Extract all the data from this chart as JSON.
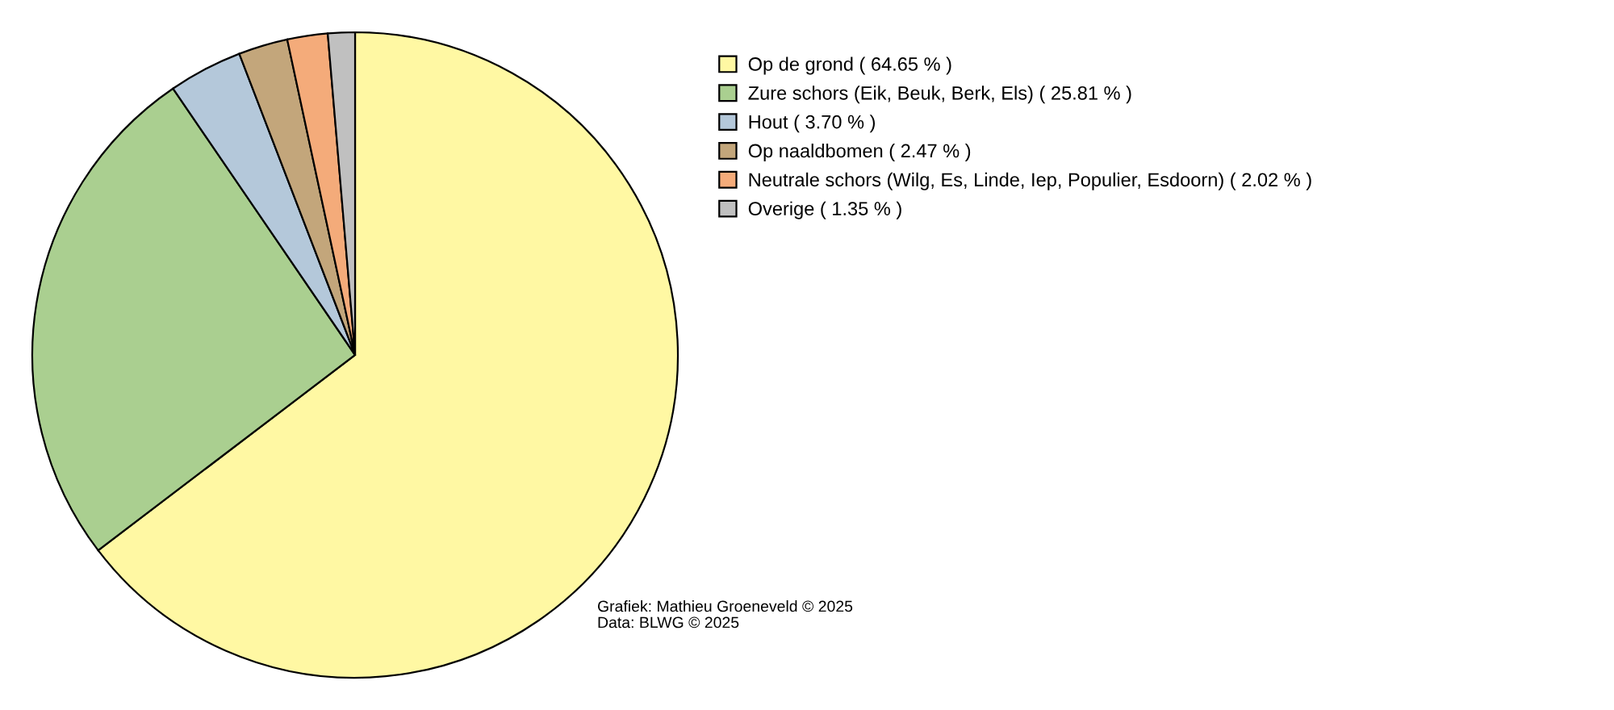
{
  "chart_data": {
    "type": "pie",
    "categories": [
      "Op de grond",
      "Zure schors (Eik, Beuk, Berk, Els)",
      "Hout",
      "Op naaldbomen",
      "Neutrale schors (Wilg, Es, Linde, Iep, Populier, Esdoorn)",
      "Overige"
    ],
    "values": [
      64.65,
      25.81,
      3.7,
      2.47,
      2.02,
      1.35
    ],
    "value_labels": [
      "( 64.65 % )",
      "( 25.81 % )",
      "( 3.70 % )",
      "( 2.47 % )",
      "( 2.02 % )",
      "( 1.35 % )"
    ],
    "colors": [
      "#fff8a3",
      "#aacf90",
      "#b4c8da",
      "#c3a67b",
      "#f4ab7a",
      "#c0c0c0"
    ],
    "legend": "top right",
    "annotations": [
      "Grafiek: Mathieu Groeneveld © 2025",
      "Data: BLWG © 2025"
    ]
  }
}
